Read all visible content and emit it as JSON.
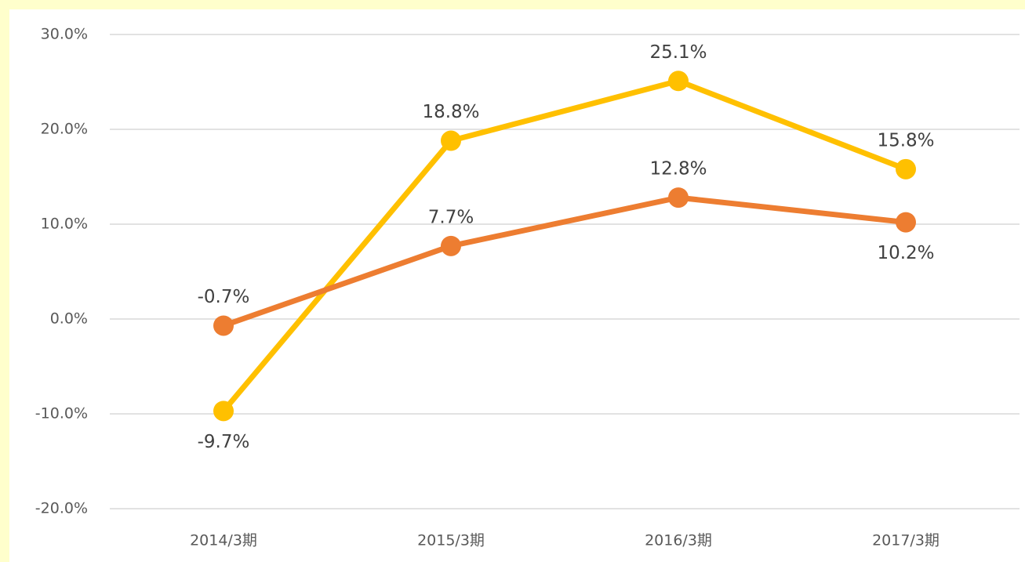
{
  "chart_data": {
    "type": "line",
    "categories": [
      "2014/3期",
      "2015/3期",
      "2016/3期",
      "2017/3期"
    ],
    "series": [
      {
        "color": "#ffc000",
        "values": [
          -9.7,
          18.8,
          25.1,
          15.8
        ],
        "value_labels": [
          "-9.7%",
          "18.8%",
          "25.1%",
          "15.8%"
        ]
      },
      {
        "color": "#ed7d31",
        "values": [
          -0.7,
          7.7,
          12.8,
          10.2
        ],
        "value_labels": [
          "-0.7%",
          "7.7%",
          "12.8%",
          "10.2%"
        ]
      }
    ],
    "ylim": [
      -20,
      30
    ],
    "yticks": [
      {
        "value": -20,
        "label": "-20.0%"
      },
      {
        "value": -10,
        "label": "-10.0%"
      },
      {
        "value": 0,
        "label": "0.0%"
      },
      {
        "value": 10,
        "label": "10.0%"
      },
      {
        "value": 20,
        "label": "20.0%"
      },
      {
        "value": 30,
        "label": "30.0%"
      }
    ],
    "grid": true
  }
}
